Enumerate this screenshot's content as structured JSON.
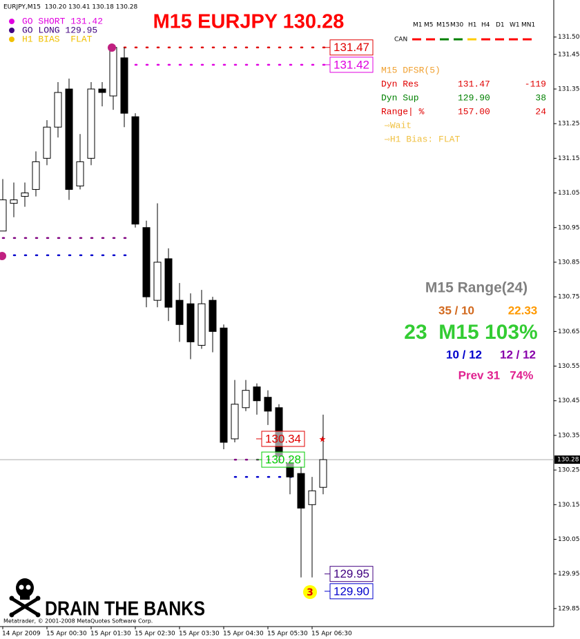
{
  "header": "EURJPY,M15  130.20 130.41 130.18 130.28",
  "title": "M15 EURJPY 130.28",
  "legend": [
    {
      "label": "GO SHORT 131.42",
      "color": "#e000e0"
    },
    {
      "label": "GO LONG 129.95",
      "color": "#400080"
    },
    {
      "label": "H1 BIAS  FLAT",
      "color": "#f0c000"
    }
  ],
  "chart_data": {
    "type": "candlestick",
    "categories": [
      "14 Apr 2009",
      null,
      null,
      null,
      "15 Apr 00:30",
      null,
      null,
      null,
      "15 Apr 01:30",
      null,
      null,
      null,
      "15 Apr 02:30",
      null,
      null,
      null,
      "15 Apr 03:30",
      null,
      null,
      null,
      "15 Apr 04:30",
      null,
      null,
      null,
      "15 Apr 05:30",
      null,
      null,
      null,
      "15 Apr 06:30",
      null
    ],
    "open": [
      130.94,
      131.02,
      131.04,
      131.06,
      131.15,
      131.24,
      131.35,
      131.07,
      131.15,
      131.35,
      131.33,
      131.44,
      131.27,
      130.95,
      130.74,
      130.86,
      130.74,
      130.73,
      130.61,
      130.74,
      130.66,
      130.34,
      130.43,
      130.49,
      130.46,
      130.43,
      130.27,
      130.24,
      130.15,
      130.2
    ],
    "high": [
      131.09,
      131.08,
      131.08,
      131.17,
      131.26,
      131.37,
      131.38,
      131.22,
      131.37,
      131.37,
      131.48,
      131.47,
      131.28,
      130.97,
      131.02,
      130.89,
      130.79,
      130.76,
      130.77,
      130.75,
      130.67,
      130.51,
      130.51,
      130.5,
      130.48,
      130.44,
      130.29,
      130.26,
      130.23,
      130.41
    ],
    "low": [
      130.94,
      130.98,
      131.01,
      131.04,
      131.13,
      131.21,
      131.03,
      131.06,
      131.13,
      131.3,
      131.29,
      131.24,
      130.95,
      130.72,
      130.72,
      130.68,
      130.62,
      130.57,
      130.6,
      130.59,
      130.31,
      130.33,
      130.42,
      130.41,
      130.38,
      130.27,
      130.18,
      129.94,
      129.94,
      130.18
    ],
    "close": [
      131.03,
      131.03,
      131.05,
      131.14,
      131.24,
      131.34,
      131.06,
      131.14,
      131.35,
      131.34,
      131.47,
      131.28,
      130.96,
      130.75,
      130.85,
      130.72,
      130.67,
      130.62,
      130.73,
      130.65,
      130.33,
      130.44,
      130.48,
      130.45,
      130.42,
      130.29,
      130.23,
      130.14,
      130.19,
      130.28
    ],
    "ylim": [
      129.798,
      131.603
    ],
    "yticks": [
      {
        "value": 131.5,
        "label": "131.50"
      },
      131.45,
      131.35,
      131.25,
      131.15,
      131.05,
      130.95,
      130.85,
      130.75,
      130.65,
      130.55,
      130.45,
      130.35,
      130.25,
      130.15,
      130.05,
      129.95,
      129.85
    ],
    "last_price": 130.28,
    "dotted_levels": [
      {
        "value": 131.47,
        "color": "#e00000",
        "span": [
          10,
          29
        ]
      },
      {
        "value": 131.42,
        "color": "#e000e0",
        "span": [
          11,
          29
        ]
      },
      {
        "value": 130.92,
        "color": "#800080",
        "span": [
          0,
          11
        ]
      },
      {
        "value": 130.87,
        "color": "#0000cc",
        "span": [
          0,
          11
        ]
      },
      {
        "value": 130.28,
        "color": "#800080",
        "span": [
          21,
          25
        ]
      },
      {
        "value": 130.23,
        "color": "#0000cc",
        "span": [
          21,
          26
        ]
      }
    ],
    "price_boxes": [
      {
        "value": 131.47,
        "color": "#e00000",
        "anchor_index": 29
      },
      {
        "value": 131.42,
        "color": "#e000e0",
        "anchor_index": 29
      },
      {
        "value": 130.34,
        "color": "#e00000",
        "anchor_index": 24
      },
      {
        "value": 130.28,
        "color": "#00cc00",
        "anchor_index": 24
      },
      {
        "value": 129.95,
        "color": "#400080",
        "anchor_index": 29
      },
      {
        "value": {
          "value": 129.9,
          "label": "129.90"
        },
        "color": "#0000cc",
        "anchor_index": 29
      }
    ],
    "marker_label": "3"
  },
  "timeframes": {
    "labels": [
      "M1",
      "M5",
      "M15",
      "M30",
      "H1",
      "H4",
      "D1",
      "W1",
      "MN1"
    ],
    "row_label": "CAN",
    "colors": [
      "#ff0000",
      "#ff0000",
      "#008000",
      "#008000",
      "#ffcc00",
      "#ff0000",
      "#ff0000",
      "#ff0000",
      "#ff0000"
    ]
  },
  "dfsr": {
    "title": "M15 DFSR(5)",
    "rows": [
      {
        "cells": [
          "Dyn Res",
          "131.47",
          "-119"
        ],
        "color": "#e00000"
      },
      {
        "cells": [
          "Dyn Sup",
          "129.90",
          "38"
        ],
        "color": "#008000"
      },
      {
        "cells": [
          "Range| %",
          "157.00",
          "24"
        ],
        "color": "#e00000"
      }
    ],
    "notes": [
      "⇨Wait",
      "⇨H1 Bias: FLAT"
    ]
  },
  "range_panel": [
    {
      "text": "M15 Range(24)",
      "color": "#808080"
    },
    {
      "text": "35 / 10",
      "color": "#d2691e"
    },
    {
      "text": "22.33",
      "color": "#ff9900"
    },
    {
      "text": "23  M15 103%",
      "color": "#33cc33"
    },
    {
      "text": "10 / 12",
      "color": "#0000cc"
    },
    {
      "text": "12 / 12",
      "color": "#8800aa"
    },
    {
      "text": "Prev 31   74%",
      "color": "#e0208f"
    }
  ],
  "branding": "DRAIN THE BANKS",
  "copyright": "Metatrader, © 2001-2008 MetaQuotes Software Corp."
}
